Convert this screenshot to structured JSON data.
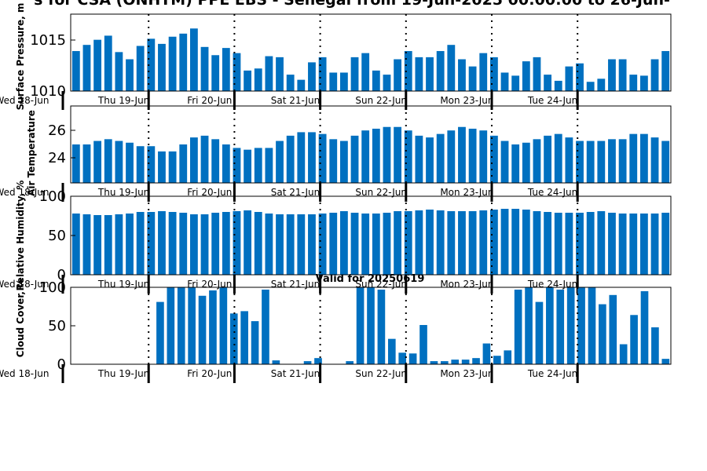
{
  "title": "s for CSA (ONHTM) PPE EBS  - Senegal from 19-Jun-2025 00:00:00 to 26-Jun-",
  "valid_label": "Valid for 20250619",
  "colors": {
    "bar": "#0070c0",
    "axis": "#000000",
    "background": "#ffffff"
  },
  "chart_data": [
    {
      "type": "bar",
      "ylabel": "Surface Pressure, m",
      "ylim": [
        1010,
        1017.5
      ],
      "yticks": [
        "1010",
        "1015"
      ],
      "xticks": [
        "Wed 18-Jun",
        "Thu 19-Jun",
        "Fri 20-Jun",
        "Sat 21-Jun",
        "Sun 22-Jun",
        "Mon 23-Jun",
        "Tue 24-Jun"
      ],
      "values": [
        1013.9,
        1014.5,
        1015.0,
        1015.4,
        1013.8,
        1013.1,
        1014.4,
        1015.1,
        1014.6,
        1015.3,
        1015.6,
        1016.1,
        1014.3,
        1013.5,
        1014.2,
        1013.7,
        1012.0,
        1012.2,
        1013.4,
        1013.3,
        1011.6,
        1011.1,
        1012.8,
        1013.3,
        1011.8,
        1011.8,
        1013.3,
        1013.7,
        1012.0,
        1011.6,
        1013.1,
        1013.9,
        1013.3,
        1013.3,
        1013.9,
        1014.5,
        1013.1,
        1012.4,
        1013.7,
        1013.3,
        1011.8,
        1011.5,
        1012.9,
        1013.3,
        1011.6,
        1011.0,
        1012.4,
        1012.7,
        1010.9,
        1011.2,
        1013.1,
        1013.1,
        1011.6,
        1011.5,
        1013.1,
        1013.9
      ]
    },
    {
      "type": "bar",
      "ylabel": "Air Temperature",
      "ylim": [
        22.8,
        27.2
      ],
      "yticks": [
        "24",
        "26"
      ],
      "xticks": [
        "Wed 18-Jun",
        "Thu 19-Jun",
        "Fri 20-Jun",
        "Sat 21-Jun",
        "Sun 22-Jun",
        "Mon 23-Jun",
        "Tue 24-Jun"
      ],
      "values": [
        25.0,
        25.0,
        25.2,
        25.3,
        25.2,
        25.1,
        24.9,
        24.9,
        24.6,
        24.6,
        25.0,
        25.4,
        25.5,
        25.3,
        25.0,
        24.8,
        24.7,
        24.8,
        24.8,
        25.2,
        25.5,
        25.7,
        25.7,
        25.6,
        25.3,
        25.2,
        25.5,
        25.8,
        25.9,
        26.0,
        26.0,
        25.8,
        25.5,
        25.4,
        25.6,
        25.8,
        26.0,
        25.9,
        25.8,
        25.5,
        25.2,
        25.0,
        25.1,
        25.3,
        25.5,
        25.6,
        25.4,
        25.2,
        25.2,
        25.2,
        25.3,
        25.3,
        25.6,
        25.6,
        25.4,
        25.2
      ]
    },
    {
      "type": "bar",
      "ylabel": "Relative Humidity, %",
      "ylim": [
        0,
        100
      ],
      "yticks": [
        "0",
        "50",
        "100"
      ],
      "xticks": [
        "Wed 18-Jun",
        "Thu 19-Jun",
        "Fri 20-Jun",
        "Sat 21-Jun",
        "Sun 22-Jun",
        "Mon 23-Jun",
        "Tue 24-Jun"
      ],
      "values": [
        78,
        77,
        76,
        76,
        77,
        78,
        80,
        80,
        81,
        80,
        79,
        77,
        77,
        79,
        80,
        81,
        82,
        80,
        78,
        77,
        77,
        77,
        77,
        78,
        79,
        81,
        79,
        78,
        78,
        79,
        81,
        81,
        82,
        83,
        82,
        81,
        81,
        81,
        82,
        83,
        84,
        84,
        83,
        81,
        80,
        79,
        79,
        79,
        80,
        81,
        79,
        78,
        78,
        78,
        78,
        79
      ]
    },
    {
      "type": "bar",
      "ylabel": "Cloud Cover, %",
      "ylim": [
        0,
        100
      ],
      "yticks": [
        "0",
        "50",
        "100"
      ],
      "xticks": [
        "Wed 18-Jun",
        "Thu 19-Jun",
        "Fri 20-Jun",
        "Sat 21-Jun",
        "Sun 22-Jun",
        "Mon 23-Jun",
        "Tue 24-Jun"
      ],
      "values": [
        0,
        0,
        0,
        0,
        0,
        0,
        0,
        0,
        81,
        100,
        100,
        100,
        89,
        96,
        100,
        66,
        69,
        56,
        97,
        5,
        0,
        0,
        4,
        8,
        0,
        0,
        4,
        100,
        100,
        97,
        33,
        15,
        14,
        51,
        4,
        4,
        6,
        6,
        8,
        27,
        11,
        18,
        97,
        100,
        81,
        100,
        97,
        100,
        100,
        100,
        78,
        90,
        26,
        64,
        95,
        48,
        7
      ]
    }
  ]
}
